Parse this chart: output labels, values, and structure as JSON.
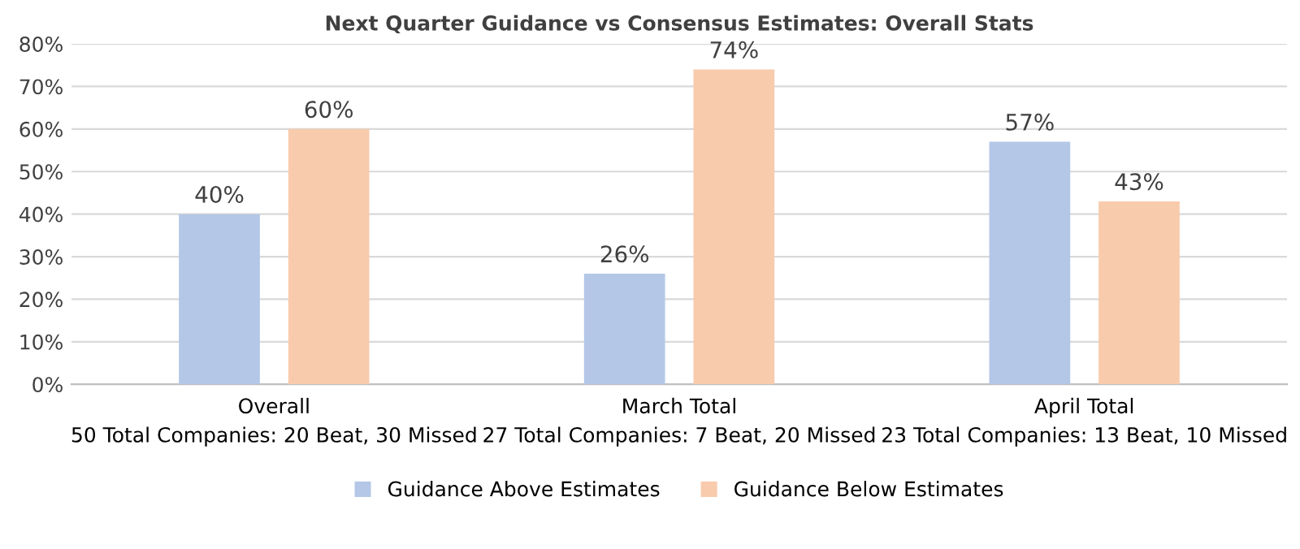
{
  "chart_data": {
    "type": "bar",
    "title": "Next Quarter Guidance vs Consensus Estimates: Overall Stats",
    "categories": [
      "Overall\n50 Total Companies: 20 Beat, 30 Missed",
      "March Total\n27 Total Companies: 7 Beat, 20 Missed",
      "April Total\n23 Total Companies: 13 Beat, 10 Missed"
    ],
    "series": [
      {
        "name": "Guidance Above Estimates",
        "color": "#b4c7e7",
        "values": [
          40,
          26,
          57
        ],
        "value_labels": [
          "40%",
          "26%",
          "57%"
        ]
      },
      {
        "name": "Guidance Below Estimates",
        "color": "#f8cbad",
        "values": [
          60,
          74,
          43
        ],
        "value_labels": [
          "60%",
          "74%",
          "43%"
        ]
      }
    ],
    "ylim": [
      0,
      80
    ],
    "yticks": [
      {
        "value": 0,
        "label": "0%"
      },
      {
        "value": 10,
        "label": "10%"
      },
      {
        "value": 20,
        "label": "20%"
      },
      {
        "value": 30,
        "label": "30%"
      },
      {
        "value": 40,
        "label": "40%"
      },
      {
        "value": 50,
        "label": "50%"
      },
      {
        "value": 60,
        "label": "60%"
      },
      {
        "value": 70,
        "label": "70%"
      },
      {
        "value": 80,
        "label": "80%"
      }
    ],
    "grid": "y",
    "legend": "bottom"
  }
}
